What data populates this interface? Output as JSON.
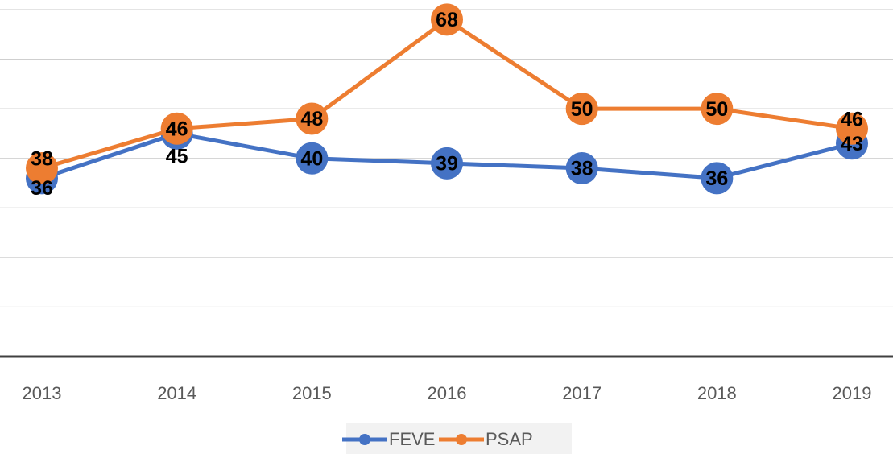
{
  "chart_data": {
    "type": "line",
    "categories": [
      "2013",
      "2014",
      "2015",
      "2016",
      "2017",
      "2018",
      "2019"
    ],
    "series": [
      {
        "name": "FEVE",
        "color": "#4472c4",
        "values": [
          36,
          45,
          40,
          39,
          38,
          36,
          43
        ]
      },
      {
        "name": "PSAP",
        "color": "#ed7d31",
        "values": [
          38,
          46,
          48,
          68,
          50,
          50,
          46
        ]
      }
    ],
    "ylim": [
      0,
      70
    ],
    "yticks": [
      0,
      10,
      20,
      30,
      40,
      50,
      60,
      70
    ],
    "grid": true,
    "legend": "bottom"
  }
}
